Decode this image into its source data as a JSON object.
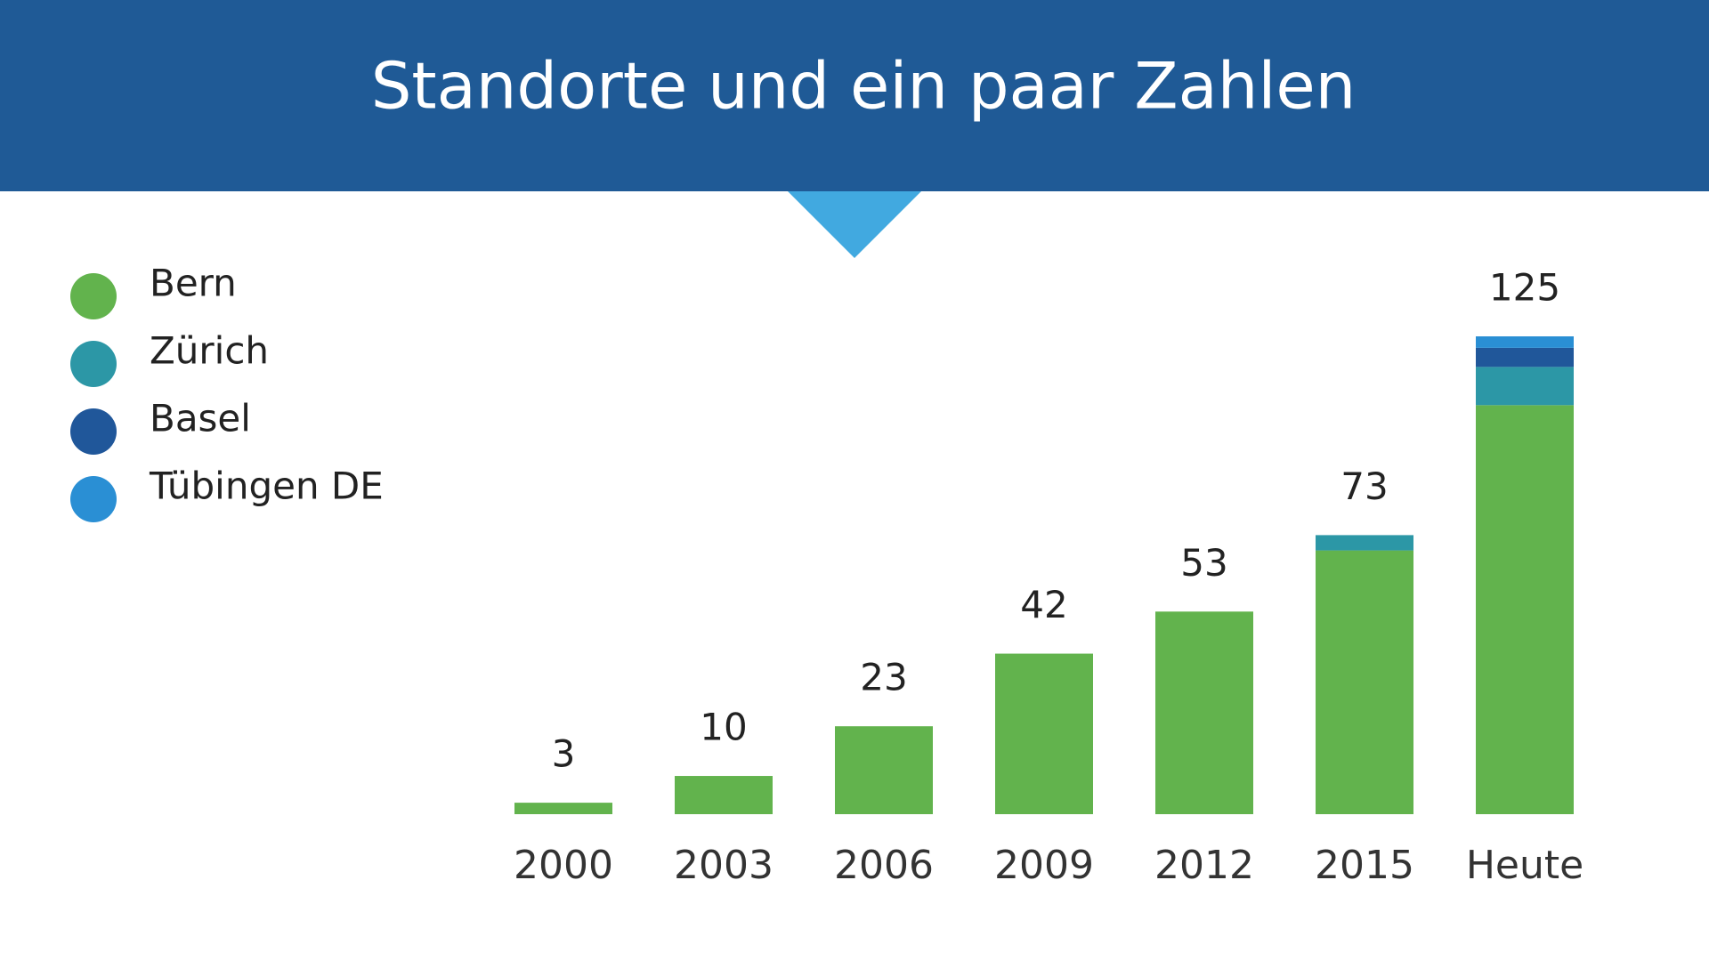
{
  "chart_data": {
    "type": "stacked_bar",
    "title": "Standorte und ein paar Zahlen",
    "categories": [
      "2000",
      "2003",
      "2006",
      "2009",
      "2012",
      "2015",
      "Heute"
    ],
    "totals": [
      3,
      10,
      23,
      42,
      53,
      73,
      125
    ],
    "series": [
      {
        "name": "Bern",
        "color": "#62b34d",
        "values": [
          3,
          10,
          23,
          42,
          53,
          69,
          107
        ]
      },
      {
        "name": "Zürich",
        "color": "#2c97a6",
        "values": [
          null,
          null,
          null,
          null,
          null,
          4,
          10
        ]
      },
      {
        "name": "Basel",
        "color": "#20579a",
        "values": [
          null,
          null,
          null,
          null,
          null,
          null,
          5
        ]
      },
      {
        "name": "Tübingen DE",
        "color": "#2a8fd4",
        "values": [
          null,
          null,
          null,
          null,
          null,
          null,
          3
        ]
      }
    ],
    "ylim": [
      0,
      125
    ],
    "legend": "left"
  }
}
